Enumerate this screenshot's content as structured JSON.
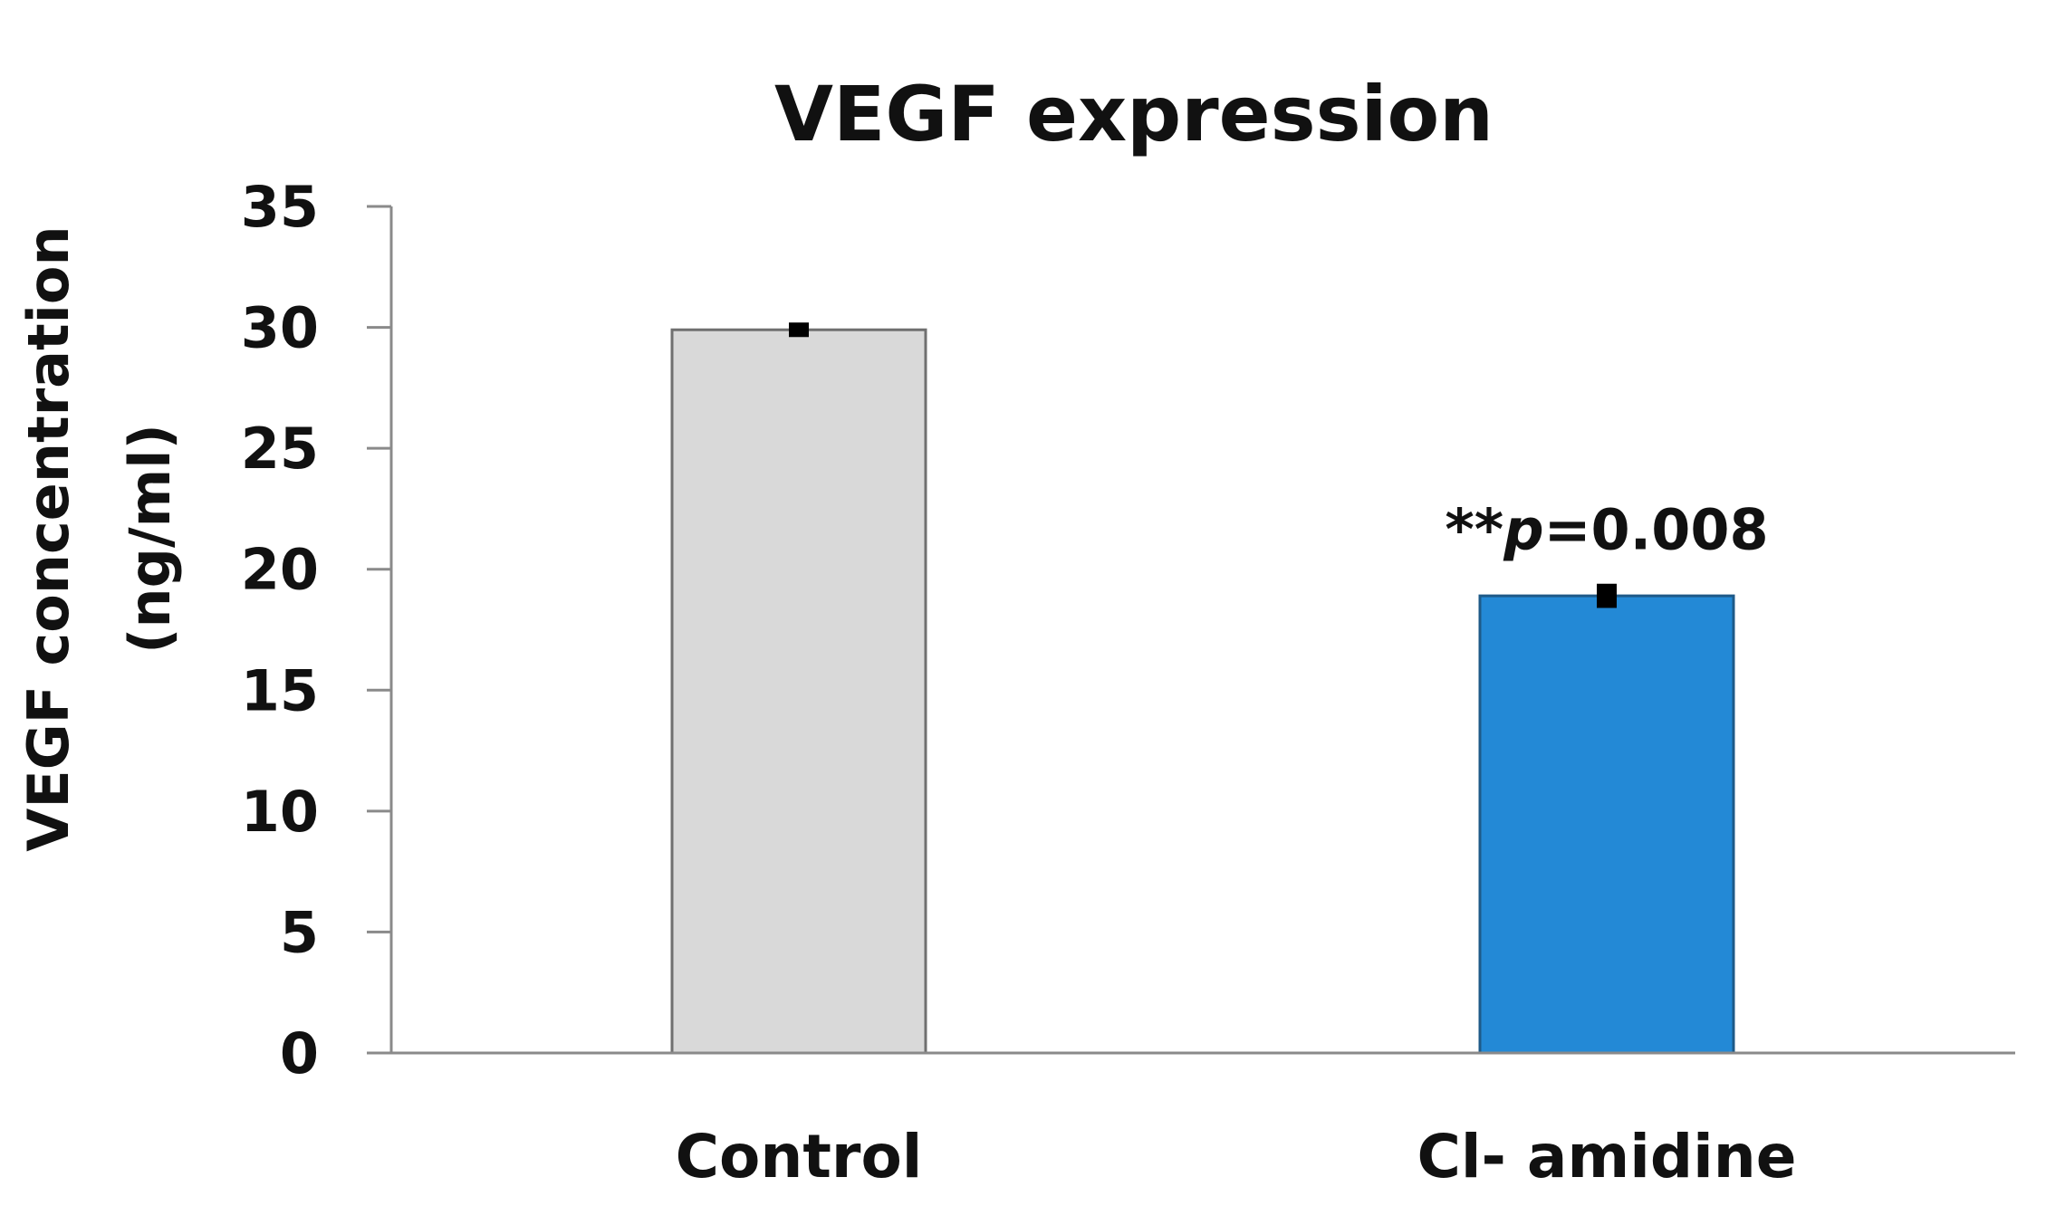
{
  "chart_data": {
    "type": "bar",
    "title": "VEGF expression",
    "xlabel": "",
    "ylabel": [
      "VEGF concentration",
      "(ng/ml)"
    ],
    "categories": [
      "Control",
      "Cl- amidine"
    ],
    "values": [
      29.9,
      18.9
    ],
    "errors": [
      0.3,
      0.5
    ],
    "ylim": [
      0,
      35
    ],
    "yticks": [
      0,
      5,
      10,
      15,
      20,
      25,
      30,
      35
    ],
    "grid": false,
    "legend": "none",
    "colors": [
      "#d9d9d9",
      "#2389d6"
    ],
    "annotations": [
      {
        "category_index": 1,
        "stars": "**",
        "p_symbol": "p",
        "p_value": "=0.008"
      }
    ]
  }
}
